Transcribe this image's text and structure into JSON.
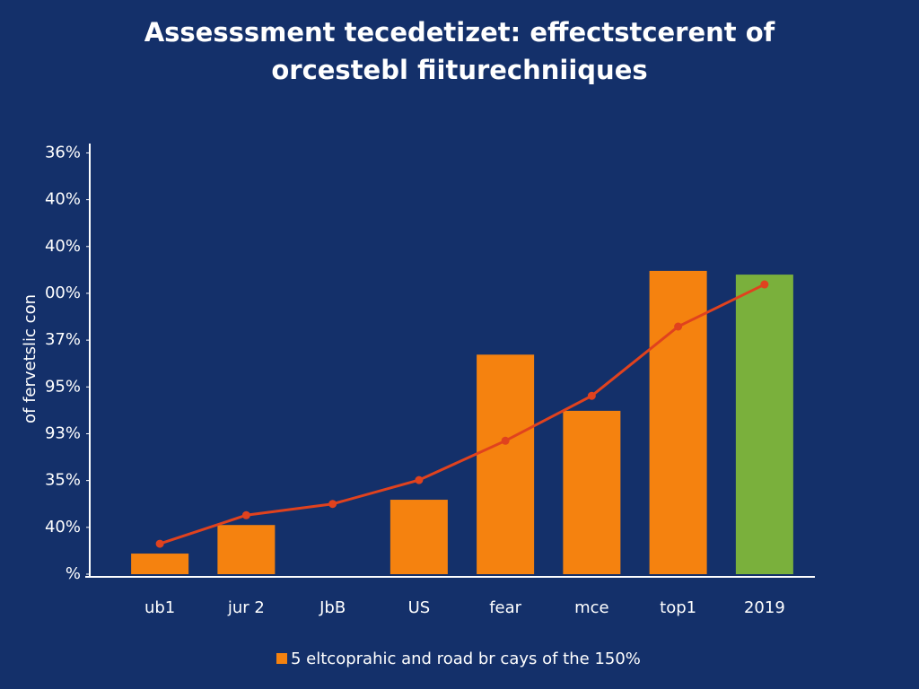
{
  "chart_data": {
    "type": "bar",
    "title": [
      "Assesssment tecedetizet: effectstcerent of",
      "orcestebl fiiturechniiques"
    ],
    "y_label": "of fervetslic con",
    "categories": [
      "ub1",
      "jur 2",
      "JbB",
      "US",
      "fear",
      "mce",
      "top1",
      "2019"
    ],
    "series": [
      {
        "name": "5 eltcoprahic and road br cays of the 150%",
        "type": "bar",
        "color": "#f5820f",
        "colors": [
          "#f5820f",
          "#f5820f",
          "#f5820f",
          "#f5820f",
          "#f5820f",
          "#f5820f",
          "#f5820f",
          "#7ab03c"
        ],
        "values": [
          0.44,
          1.05,
          null,
          1.59,
          4.69,
          3.49,
          6.48,
          6.4
        ]
      },
      {
        "type": "line",
        "color": "#e0421e",
        "values": [
          0.65,
          1.26,
          1.5,
          2.01,
          2.85,
          3.81,
          5.29,
          6.19
        ]
      }
    ],
    "ylim": [
      0,
      9.2
    ],
    "yticks": [
      {
        "value": 0,
        "label": "%"
      },
      {
        "value": 1,
        "label": "40%"
      },
      {
        "value": 2,
        "label": "35%"
      },
      {
        "value": 3,
        "label": "93%"
      },
      {
        "value": 4,
        "label": "95%"
      },
      {
        "value": 5,
        "label": "37%"
      },
      {
        "value": 6,
        "label": "00%"
      },
      {
        "value": 7,
        "label": "40%"
      },
      {
        "value": 8,
        "label": "40%"
      },
      {
        "value": 9,
        "label": "36%"
      }
    ],
    "grid": false,
    "legend": "bottom"
  }
}
